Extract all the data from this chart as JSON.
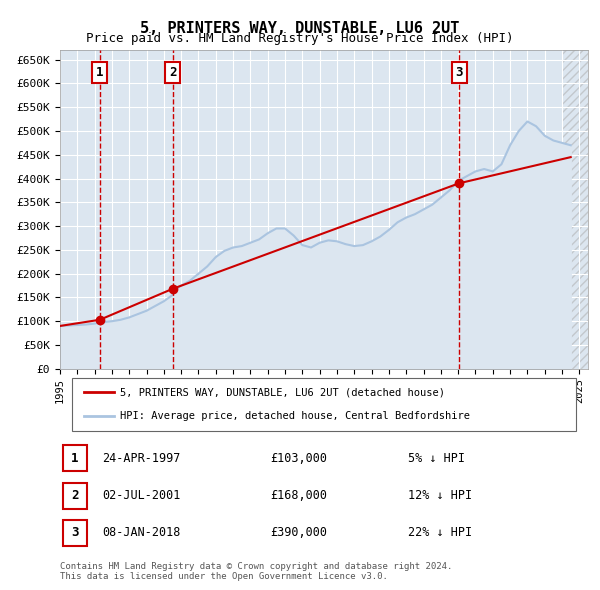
{
  "title": "5, PRINTERS WAY, DUNSTABLE, LU6 2UT",
  "subtitle": "Price paid vs. HM Land Registry's House Price Index (HPI)",
  "ylabel_ticks": [
    "£0",
    "£50K",
    "£100K",
    "£150K",
    "£200K",
    "£250K",
    "£300K",
    "£350K",
    "£400K",
    "£450K",
    "£500K",
    "£550K",
    "£600K",
    "£650K"
  ],
  "ytick_values": [
    0,
    50000,
    100000,
    150000,
    200000,
    250000,
    300000,
    350000,
    400000,
    450000,
    500000,
    550000,
    600000,
    650000
  ],
  "ylim": [
    0,
    670000
  ],
  "xlim_start": 1995.0,
  "xlim_end": 2025.5,
  "background_color": "#ffffff",
  "plot_bg_color": "#dce6f0",
  "grid_color": "#ffffff",
  "hpi_color": "#aac4e0",
  "sale_color": "#cc0000",
  "hpi_fill_color": "#dce6f0",
  "sale_label": "5, PRINTERS WAY, DUNSTABLE, LU6 2UT (detached house)",
  "hpi_label": "HPI: Average price, detached house, Central Bedfordshire",
  "transactions": [
    {
      "num": 1,
      "date": "24-APR-1997",
      "price": 103000,
      "pct": "5%",
      "year": 1997.3
    },
    {
      "num": 2,
      "date": "02-JUL-2001",
      "price": 168000,
      "pct": "12%",
      "year": 2001.5
    },
    {
      "num": 3,
      "date": "08-JAN-2018",
      "price": 390000,
      "pct": "22%",
      "year": 2018.05
    }
  ],
  "footer": "Contains HM Land Registry data © Crown copyright and database right 2024.\nThis data is licensed under the Open Government Licence v3.0.",
  "hpi_years": [
    1995,
    1995.5,
    1996,
    1996.5,
    1997,
    1997.3,
    1997.5,
    1998,
    1998.5,
    1999,
    1999.5,
    2000,
    2000.5,
    2001,
    2001.5,
    2001.5,
    2002,
    2002.5,
    2003,
    2003.5,
    2004,
    2004.5,
    2005,
    2005.5,
    2006,
    2006.5,
    2007,
    2007.5,
    2008,
    2008.5,
    2009,
    2009.5,
    2010,
    2010.5,
    2011,
    2011.5,
    2012,
    2012.5,
    2013,
    2013.5,
    2014,
    2014.5,
    2015,
    2015.5,
    2016,
    2016.5,
    2017,
    2017.5,
    2018,
    2018.5,
    2019,
    2019.5,
    2020,
    2020.5,
    2021,
    2021.5,
    2022,
    2022.5,
    2023,
    2023.5,
    2024,
    2024.5
  ],
  "hpi_values": [
    90000,
    91000,
    92000,
    93000,
    95000,
    97000,
    98000,
    100000,
    103000,
    108000,
    115000,
    122000,
    132000,
    142000,
    155000,
    162000,
    175000,
    185000,
    200000,
    215000,
    235000,
    248000,
    255000,
    258000,
    265000,
    272000,
    285000,
    295000,
    295000,
    280000,
    260000,
    255000,
    265000,
    270000,
    268000,
    262000,
    258000,
    260000,
    268000,
    278000,
    292000,
    308000,
    318000,
    325000,
    335000,
    345000,
    360000,
    375000,
    395000,
    405000,
    415000,
    420000,
    415000,
    430000,
    470000,
    500000,
    520000,
    510000,
    490000,
    480000,
    475000,
    470000
  ],
  "sale_years": [
    1995,
    1997.3,
    2001.5,
    2018.05,
    2024.5
  ],
  "sale_values": [
    90000,
    103000,
    168000,
    390000,
    445000
  ],
  "xtick_years": [
    1995,
    1996,
    1997,
    1998,
    1999,
    2000,
    2001,
    2002,
    2003,
    2004,
    2005,
    2006,
    2007,
    2008,
    2009,
    2010,
    2011,
    2012,
    2013,
    2014,
    2015,
    2016,
    2017,
    2018,
    2019,
    2020,
    2021,
    2022,
    2023,
    2024,
    2025
  ]
}
